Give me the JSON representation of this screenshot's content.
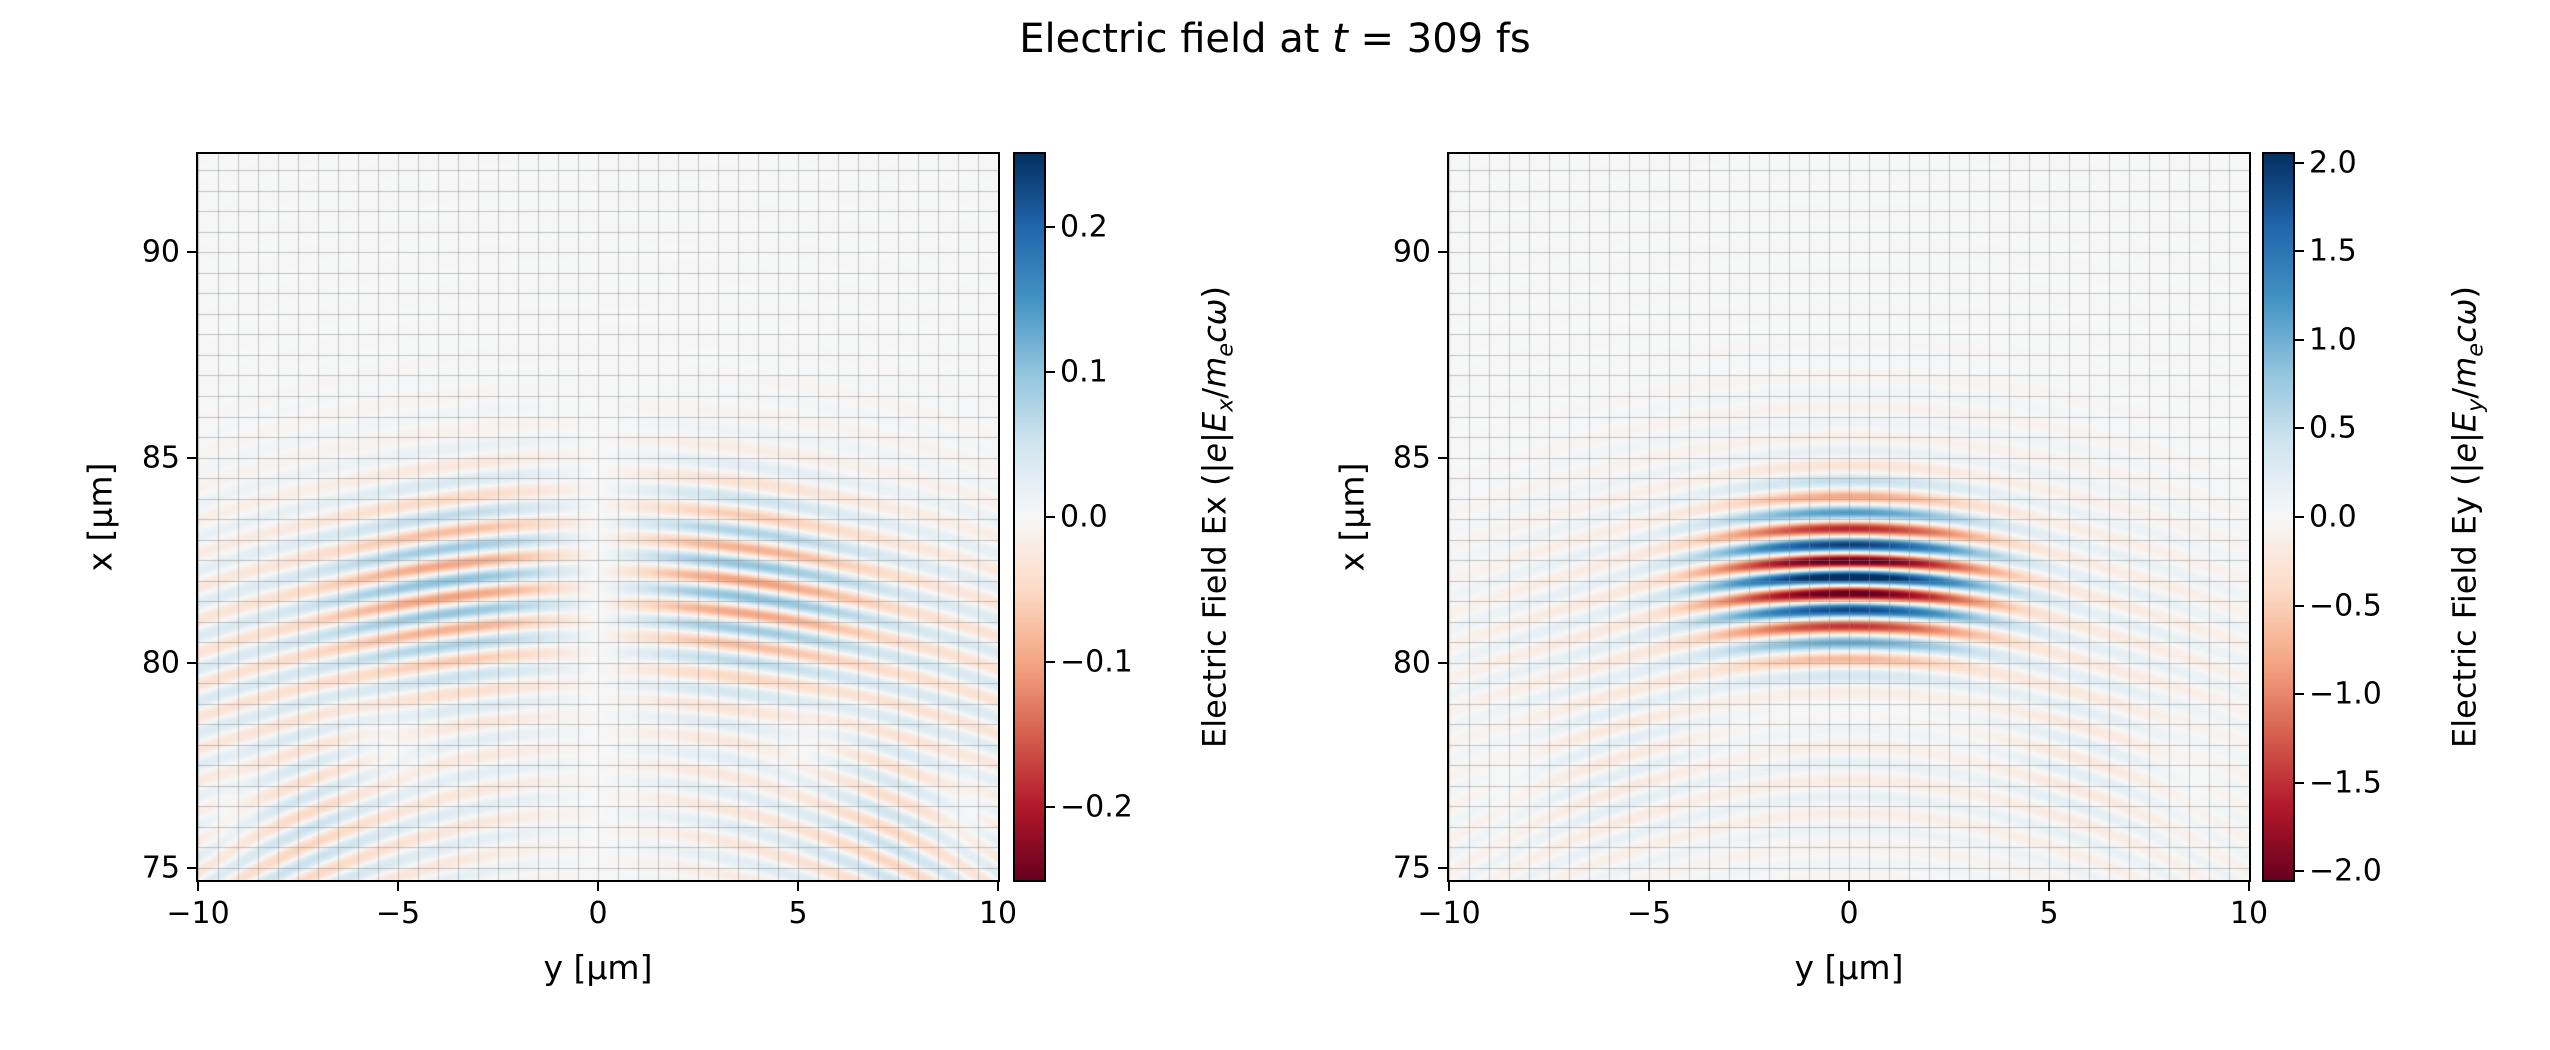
{
  "figure": {
    "title": "Electric field at t = 309 fs",
    "title_parts": [
      {
        "t": "Electric field at "
      },
      {
        "t": "t",
        "i": true
      },
      {
        "t": " = 309 fs"
      }
    ],
    "background": "#ffffff"
  },
  "chart_data": [
    {
      "type": "heatmap",
      "name": "Ex",
      "xlabel": "y [μm]",
      "ylabel": "x [μm]",
      "x_range": [
        -10,
        10
      ],
      "y_range": [
        74.7,
        92.4
      ],
      "x_ticks": [
        -10,
        -5,
        0,
        5,
        10
      ],
      "x_tick_labels": [
        "−10",
        "−5",
        "0",
        "5",
        "10"
      ],
      "y_ticks": [
        75,
        80,
        85,
        90
      ],
      "y_tick_labels": [
        "75",
        "80",
        "85",
        "90"
      ],
      "grid": {
        "on": true,
        "spacing_um": 0.5,
        "color": "#8c8c8c",
        "alpha": 0.5
      },
      "colormap": "RdBu",
      "clim": [
        -0.25,
        0.25
      ],
      "colorbar": {
        "ticks": [
          0.2,
          0.1,
          0.0,
          -0.1,
          -0.2
        ],
        "tick_labels": [
          "0.2",
          "0.1",
          "0.0",
          "−0.1",
          "−0.2"
        ],
        "label": "Electric Field Ex (|e|Ex/mecω)",
        "label_parts": [
          {
            "t": "Electric Field Ex (|"
          },
          {
            "t": "e",
            "i": true
          },
          {
            "t": "|"
          },
          {
            "t": "E",
            "i": true
          },
          {
            "t": "x",
            "sub": true,
            "i": true
          },
          {
            "t": "/"
          },
          {
            "t": "m",
            "i": true
          },
          {
            "t": "e",
            "sub": true,
            "i": true
          },
          {
            "t": "c",
            "i": true
          },
          {
            "t": "ω",
            "i": true
          },
          {
            "t": ")"
          }
        ]
      },
      "field_model": {
        "component": "Ex",
        "wavelength_um": 0.8,
        "focus_y_um": 0.0,
        "terms": [
          {
            "amp": 0.13,
            "xc": 82.0,
            "sx": 1.9,
            "sy": 4.0,
            "curv": 0.018,
            "phase": 1.5708,
            "node": true
          },
          {
            "amp": 0.06,
            "xc": 81.5,
            "sx": 2.6,
            "sy": 7.0,
            "curv": 0.018,
            "phase": 1.5708,
            "node": true
          },
          {
            "amp": 0.05,
            "xc": 76.6,
            "sx": 1.7,
            "sy": 8.0,
            "curv": 0.03,
            "phase": 2.2,
            "node": true
          }
        ]
      }
    },
    {
      "type": "heatmap",
      "name": "Ey",
      "xlabel": "y [μm]",
      "ylabel": "x [μm]",
      "x_range": [
        -10,
        10
      ],
      "y_range": [
        74.7,
        92.4
      ],
      "x_ticks": [
        -10,
        -5,
        0,
        5,
        10
      ],
      "x_tick_labels": [
        "−10",
        "−5",
        "0",
        "5",
        "10"
      ],
      "y_ticks": [
        75,
        80,
        85,
        90
      ],
      "y_tick_labels": [
        "75",
        "80",
        "85",
        "90"
      ],
      "grid": {
        "on": true,
        "spacing_um": 0.5,
        "color": "#8c8c8c",
        "alpha": 0.5
      },
      "colormap": "RdBu",
      "clim": [
        -2.05,
        2.05
      ],
      "colorbar": {
        "ticks": [
          2.0,
          1.5,
          1.0,
          0.5,
          0.0,
          -0.5,
          -1.0,
          -1.5,
          -2.0
        ],
        "tick_labels": [
          "2.0",
          "1.5",
          "1.0",
          "0.5",
          "0.0",
          "−0.5",
          "−1.0",
          "−1.5",
          "−2.0"
        ],
        "label": "Electric Field Ey (|e|Ey/mecω)",
        "label_parts": [
          {
            "t": "Electric Field Ey (|"
          },
          {
            "t": "e",
            "i": true
          },
          {
            "t": "|"
          },
          {
            "t": "E",
            "i": true
          },
          {
            "t": "y",
            "sub": true,
            "i": true
          },
          {
            "t": "/"
          },
          {
            "t": "m",
            "i": true
          },
          {
            "t": "e",
            "sub": true,
            "i": true
          },
          {
            "t": "c",
            "i": true
          },
          {
            "t": "ω",
            "i": true
          },
          {
            "t": ")"
          }
        ]
      },
      "field_model": {
        "component": "Ey",
        "wavelength_um": 0.8,
        "focus_y_um": 0.0,
        "terms": [
          {
            "amp": 2.6,
            "xc": 82.1,
            "sx": 1.4,
            "sy": 2.6,
            "curv": 0.018,
            "phase": 0,
            "node": false
          },
          {
            "amp": 0.5,
            "xc": 81.8,
            "sx": 2.4,
            "sy": 5.5,
            "curv": 0.018,
            "phase": 0,
            "node": false
          },
          {
            "amp": 0.22,
            "xc": 77.6,
            "sx": 1.6,
            "sy": 7.5,
            "curv": 0.03,
            "phase": 0.8,
            "node": false
          }
        ]
      }
    }
  ]
}
